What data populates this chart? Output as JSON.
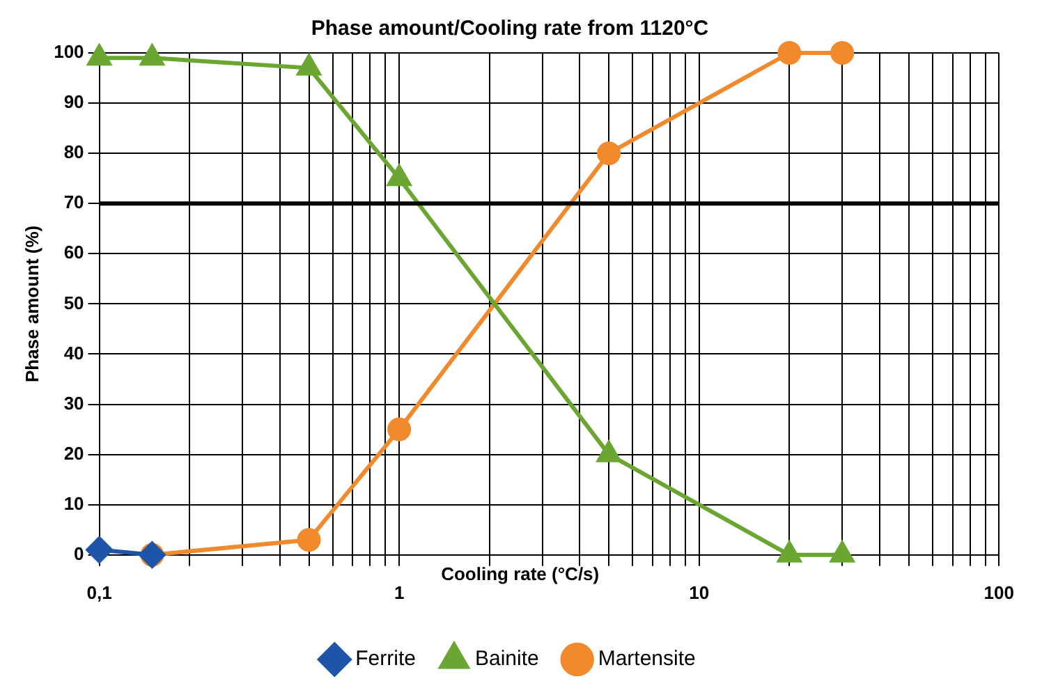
{
  "chart_data": {
    "type": "line",
    "title": "Phase amount/Cooling rate from 1120°C",
    "xlabel": "Cooling rate (°C/s)",
    "ylabel": "Phase amount (%)",
    "log": "x",
    "grid": true,
    "legend": "bottom",
    "xlim": [
      0.1,
      100
    ],
    "ylim": [
      0,
      100
    ],
    "yticks": [
      0,
      10,
      20,
      30,
      40,
      50,
      60,
      70,
      80,
      90,
      100
    ],
    "xticks": [
      {
        "value": 0.1,
        "label": "0,1"
      },
      {
        "value": 0.2,
        "label": null
      },
      {
        "value": 0.3,
        "label": null
      },
      {
        "value": 0.4,
        "label": null
      },
      {
        "value": 0.5,
        "label": null
      },
      {
        "value": 0.6,
        "label": null
      },
      {
        "value": 0.7,
        "label": null
      },
      {
        "value": 0.8,
        "label": null
      },
      {
        "value": 0.9,
        "label": null
      },
      {
        "value": 1,
        "label": "1"
      },
      {
        "value": 2,
        "label": null
      },
      {
        "value": 3,
        "label": null
      },
      {
        "value": 4,
        "label": null
      },
      {
        "value": 5,
        "label": null
      },
      {
        "value": 6,
        "label": null
      },
      {
        "value": 7,
        "label": null
      },
      {
        "value": 8,
        "label": null
      },
      {
        "value": 9,
        "label": null
      },
      {
        "value": 10,
        "label": "10"
      },
      {
        "value": 20,
        "label": null
      },
      {
        "value": 30,
        "label": null
      },
      {
        "value": 40,
        "label": null
      },
      {
        "value": 50,
        "label": null
      },
      {
        "value": 60,
        "label": null
      },
      {
        "value": 70,
        "label": null
      },
      {
        "value": 80,
        "label": null
      },
      {
        "value": 90,
        "label": null
      },
      {
        "value": 100,
        "label": "100"
      }
    ],
    "ref_lines": [
      {
        "axis": "y",
        "value": 70,
        "color": "#000000"
      }
    ],
    "series": [
      {
        "name": "Ferrite",
        "color": "#1f55a8",
        "marker": "diamond",
        "x": [
          0.1,
          0.15
        ],
        "values": [
          1,
          0
        ]
      },
      {
        "name": "Bainite",
        "color": "#6aa631",
        "marker": "triangle",
        "x": [
          0.1,
          0.15,
          0.5,
          1,
          5,
          20,
          30
        ],
        "values": [
          99,
          99,
          97,
          75,
          20,
          0,
          0
        ]
      },
      {
        "name": "Martensite",
        "color": "#f08a2c",
        "marker": "circle",
        "x": [
          0.15,
          0.5,
          1,
          5,
          20,
          30
        ],
        "values": [
          0,
          3,
          25,
          80,
          100,
          100
        ]
      }
    ]
  }
}
